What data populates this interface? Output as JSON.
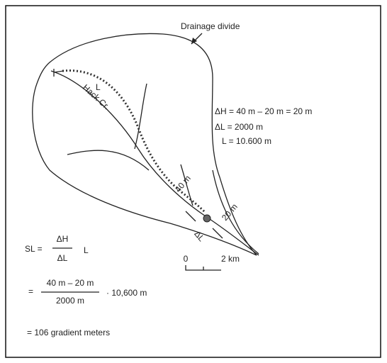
{
  "labels": {
    "divide": "Drainage divide",
    "creek": "Hack Cr.",
    "length_marker": "L",
    "delta_h": "ΔH = 40 m – 20 m = 20 m",
    "delta_l": "ΔL = 2000 m",
    "total_l": "L = 10.600 m",
    "contour_upper": "40 m",
    "contour_lower": "20 m",
    "segment": "ΔL",
    "scale_zero": "0",
    "scale_end": "2 km"
  },
  "formula": {
    "lhs": "SL =",
    "numerator": "ΔH",
    "denominator": "ΔL",
    "factor": "L",
    "eq2": "=",
    "numerator2": "40 m – 20 m",
    "denominator2": "2000 m",
    "factor2": "· 10,600 m",
    "result": "= 106 gradient meters"
  }
}
